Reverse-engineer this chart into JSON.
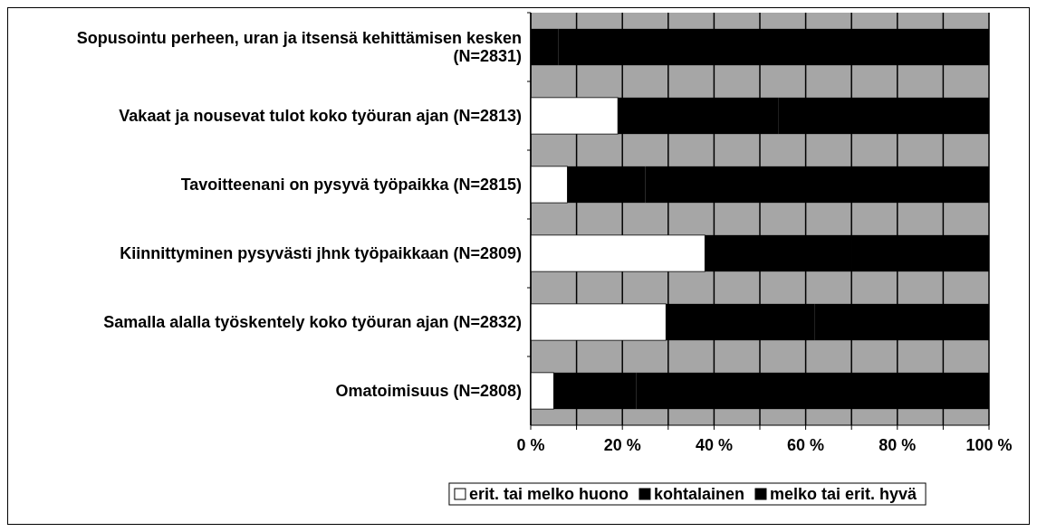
{
  "chart_data": {
    "type": "bar",
    "orientation": "horizontal",
    "stacked": true,
    "categories": [
      "Sopusointu perheen, uran ja itsensä kehittämisen kesken (N=2831)",
      "Vakaat ja nousevat tulot koko työuran ajan (N=2813)",
      "Tavoitteenani on pysyvä työpaikka (N=2815)",
      "Kiinnittyminen pysyvästi jhnk työpaikkaan (N=2809)",
      "Samalla alalla työskentely koko työuran ajan (N=2832)",
      "Omatoimisuus (N=2808)"
    ],
    "series": [
      {
        "name": "erit. tai melko huono",
        "color": "#ffffff",
        "values": [
          0,
          19,
          8,
          38,
          29.5,
          5
        ]
      },
      {
        "name": "kohtalainen",
        "color": "#000000",
        "values": [
          6,
          35,
          17,
          32,
          32.5,
          18
        ]
      },
      {
        "name": "melko tai erit. hyvä",
        "color": "#000000",
        "values": [
          94,
          46,
          75,
          30,
          38,
          77
        ]
      }
    ],
    "xlim": [
      0,
      100
    ],
    "xticks": [
      {
        "value": 0,
        "label": "0 %"
      },
      {
        "value": 10,
        "label": null
      },
      {
        "value": 20,
        "label": "20 %"
      },
      {
        "value": 30,
        "label": null
      },
      {
        "value": 40,
        "label": "40 %"
      },
      {
        "value": 50,
        "label": null
      },
      {
        "value": 60,
        "label": "60 %"
      },
      {
        "value": 70,
        "label": null
      },
      {
        "value": 80,
        "label": "80 %"
      },
      {
        "value": 90,
        "label": null
      },
      {
        "value": 100,
        "label": "100 %"
      }
    ],
    "grid": "x",
    "legend": "bottom"
  }
}
